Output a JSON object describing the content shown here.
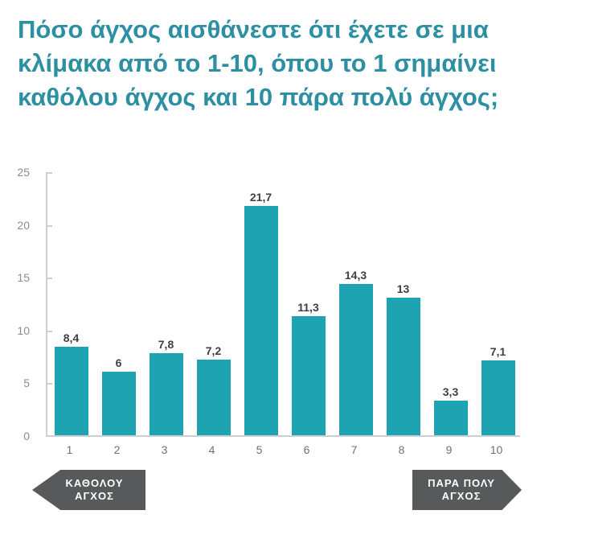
{
  "header": {
    "title": "Πόσο άγχος αισθάνεστε ότι έχετε σε μια κλίμακα από το 1-10, όπου το 1 σημαίνει καθόλου άγχος και 10 πάρα πολύ άγχος;",
    "title_lines": [
      "Πόσο άγχος αισθάνεστε ότι έχετε σε μια",
      "κλίμακα από το 1-10, όπου το 1 σημαίνει",
      "καθόλου άγχος και 10 πάρα πολύ άγχος;"
    ]
  },
  "chart_data": {
    "type": "bar",
    "categories": [
      "1",
      "2",
      "3",
      "4",
      "5",
      "6",
      "7",
      "8",
      "9",
      "10"
    ],
    "values": [
      8.4,
      6,
      7.8,
      7.2,
      21.7,
      11.3,
      14.3,
      13,
      3.3,
      7.1
    ],
    "value_labels": [
      "8,4",
      "6",
      "7,8",
      "7,2",
      "21,7",
      "11,3",
      "14,3",
      "13",
      "3,3",
      "7,1"
    ],
    "title": "",
    "xlabel": "",
    "ylabel": "",
    "ylim": [
      0,
      25
    ],
    "yticks": [
      0,
      5,
      10,
      15,
      20,
      25
    ],
    "grid": false,
    "legend": "none"
  },
  "annotations": {
    "left_arrow": {
      "line1": "ΚΑΘΟΛΟΥ",
      "line2": "ΑΓΧΟΣ"
    },
    "right_arrow": {
      "line1": "ΠΑΡΑ ΠΟΛΥ",
      "line2": "ΑΓΧΟΣ"
    }
  },
  "colors": {
    "title": "#2C90A2",
    "bar": "#1DA3B2",
    "axis_line": "#CBCFD1",
    "y_label": "#8A8D8F",
    "x_label": "#6E7173",
    "value_label": "#3D4043",
    "arrow_bg": "#58595B",
    "arrow_text": "#FFFFFF"
  }
}
